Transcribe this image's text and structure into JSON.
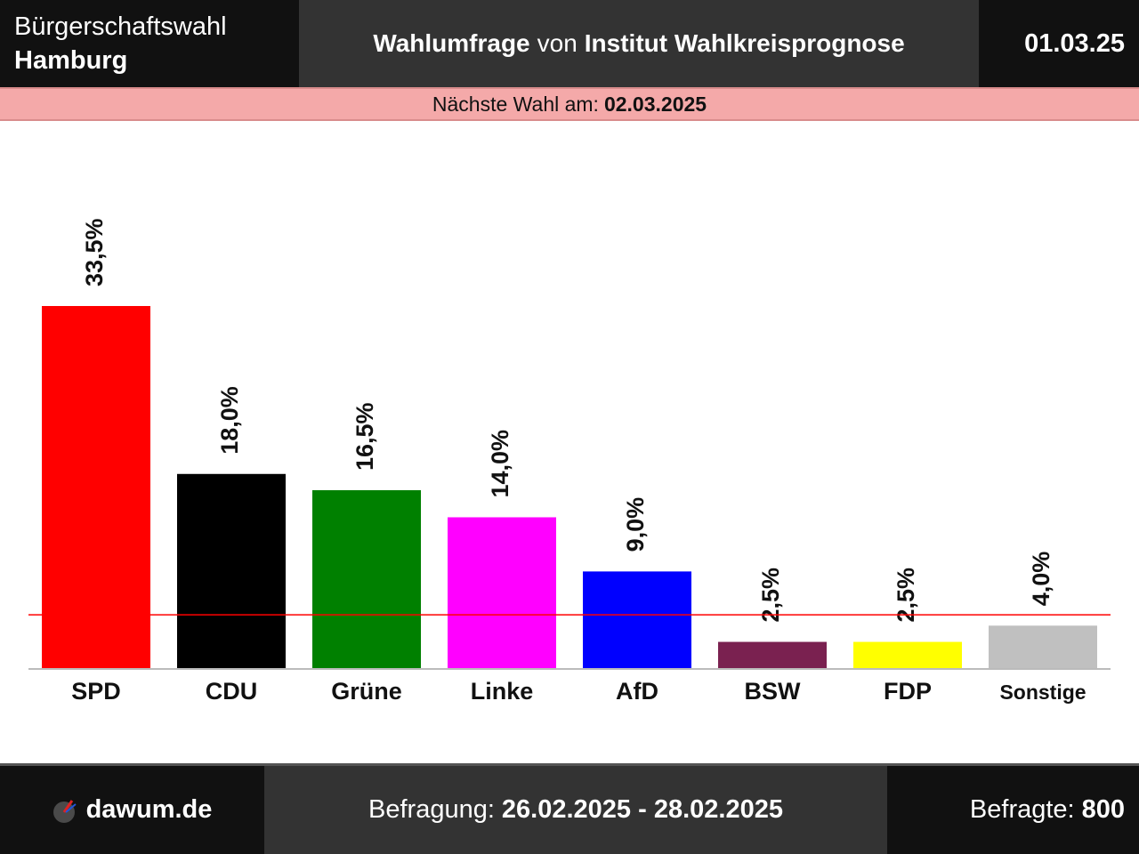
{
  "header": {
    "election_line1": "Bürgerschaftswahl",
    "election_line2": "Hamburg",
    "poll_type": "Wahlumfrage",
    "poll_connector": "von",
    "institute": "Institut Wahlkreisprognose",
    "date": "01.03.25"
  },
  "next_election": {
    "label": "Nächste Wahl am:",
    "date": "02.03.2025"
  },
  "chart_data": {
    "type": "bar",
    "categories": [
      "SPD",
      "CDU",
      "Grüne",
      "Linke",
      "AfD",
      "BSW",
      "FDP",
      "Sonstige"
    ],
    "values": [
      33.5,
      18.0,
      16.5,
      14.0,
      9.0,
      2.5,
      2.5,
      4.0
    ],
    "value_labels": [
      "33,5%",
      "18,0%",
      "16,5%",
      "14,0%",
      "9,0%",
      "2,5%",
      "2,5%",
      "4,0%"
    ],
    "colors": [
      "#ff0000",
      "#000000",
      "#008000",
      "#ff00ff",
      "#0000ff",
      "#7a2150",
      "#ffff00",
      "#c0c0c0"
    ],
    "threshold": 5,
    "threshold_color": "#ff0000",
    "ylim": [
      0,
      35
    ]
  },
  "footer": {
    "site": "dawum.de",
    "survey_label": "Befragung:",
    "survey_period": "26.02.2025 - 28.02.2025",
    "respondents_label": "Befragte:",
    "respondents": "800"
  }
}
